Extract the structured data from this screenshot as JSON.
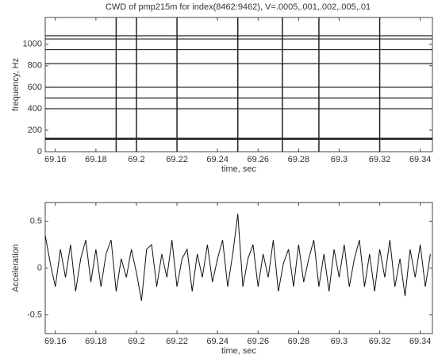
{
  "chart_data": [
    {
      "type": "contour",
      "title": "CWD of pmp215m for index(8462:9462), V=.0005,.001,.002,.005,.01",
      "xlabel": "time, sec",
      "ylabel": "frequency, Hz",
      "xlim": [
        69.155,
        69.346
      ],
      "ylim": [
        0,
        1250
      ],
      "xticks": [
        69.16,
        69.18,
        69.2,
        69.22,
        69.24,
        69.26,
        69.28,
        69.3,
        69.32,
        69.34
      ],
      "yticks": [
        0,
        200,
        400,
        600,
        800,
        1000
      ],
      "horizontal_lines": [
        120,
        400,
        500,
        600,
        820,
        950,
        1050,
        1080
      ],
      "vertical_lines": [
        69.19,
        69.2,
        69.22,
        69.25,
        69.272,
        69.29,
        69.32
      ],
      "color": "#222222"
    },
    {
      "type": "line",
      "xlabel": "time, sec",
      "ylabel": "Acceleration",
      "xlim": [
        69.155,
        69.346
      ],
      "ylim": [
        -0.7,
        0.7
      ],
      "xticks": [
        69.16,
        69.18,
        69.2,
        69.22,
        69.24,
        69.26,
        69.28,
        69.3,
        69.32,
        69.34
      ],
      "yticks": [
        -0.5,
        0,
        0.5
      ],
      "color": "#111111",
      "x": [
        69.155,
        69.1575,
        69.16,
        69.1625,
        69.165,
        69.1675,
        69.17,
        69.1725,
        69.175,
        69.1775,
        69.18,
        69.1825,
        69.185,
        69.1875,
        69.19,
        69.1925,
        69.195,
        69.1975,
        69.2,
        69.2025,
        69.205,
        69.2075,
        69.21,
        69.2125,
        69.215,
        69.2175,
        69.22,
        69.2225,
        69.225,
        69.2275,
        69.23,
        69.2325,
        69.235,
        69.2375,
        69.24,
        69.2425,
        69.245,
        69.2475,
        69.25,
        69.2525,
        69.255,
        69.2575,
        69.26,
        69.2625,
        69.265,
        69.2675,
        69.27,
        69.2725,
        69.275,
        69.2775,
        69.28,
        69.2825,
        69.285,
        69.2875,
        69.29,
        69.2925,
        69.295,
        69.2975,
        69.3,
        69.3025,
        69.305,
        69.3075,
        69.31,
        69.3125,
        69.315,
        69.3175,
        69.32,
        69.3225,
        69.325,
        69.3275,
        69.33,
        69.3325,
        69.335,
        69.3375,
        69.34,
        69.3425,
        69.345
      ],
      "values": [
        0.35,
        0.05,
        -0.2,
        0.2,
        -0.1,
        0.25,
        -0.25,
        0.1,
        0.3,
        -0.15,
        0.2,
        -0.2,
        0.15,
        0.3,
        -0.25,
        0.1,
        -0.1,
        0.2,
        -0.05,
        -0.35,
        0.2,
        0.25,
        -0.2,
        0.15,
        -0.1,
        0.3,
        -0.2,
        0.1,
        0.2,
        -0.25,
        0.15,
        -0.1,
        0.25,
        -0.15,
        0.1,
        0.3,
        -0.2,
        0.15,
        0.58,
        -0.2,
        0.1,
        0.25,
        -0.2,
        0.15,
        -0.1,
        0.3,
        -0.25,
        0.05,
        0.2,
        -0.2,
        0.25,
        -0.15,
        0.1,
        0.3,
        -0.2,
        0.15,
        -0.25,
        0.2,
        -0.1,
        0.25,
        -0.2,
        0.1,
        0.3,
        -0.2,
        0.15,
        -0.25,
        0.2,
        -0.1,
        0.3,
        -0.2,
        0.1,
        -0.3,
        0.2,
        -0.1,
        0.25,
        -0.2,
        0.15
      ]
    }
  ]
}
